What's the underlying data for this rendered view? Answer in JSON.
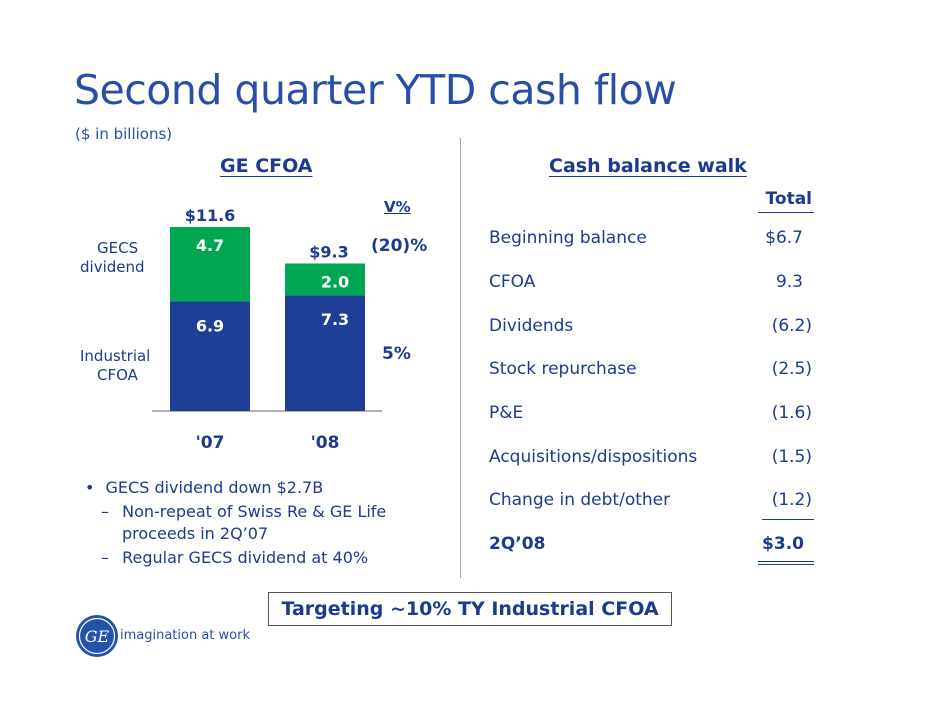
{
  "title": "Second quarter YTD cash flow",
  "subtitle": "($ in billions)",
  "left_section": {
    "heading": "GE CFOA",
    "variance_header": "V%",
    "row_labels": {
      "gecs_line1": "GECS",
      "gecs_line2": "dividend",
      "ind_line1": "Industrial",
      "ind_line2": "CFOA"
    },
    "variance_values": {
      "gecs": "(20)%",
      "industrial": "5%"
    },
    "bullets": [
      {
        "level": 1,
        "marker": "•",
        "text": "GECS dividend down $2.7B"
      },
      {
        "level": 2,
        "marker": "–",
        "text": "Non-repeat of Swiss Re & GE Life"
      },
      {
        "level": 2,
        "marker": "",
        "text": "proceeds in 2Q’07"
      },
      {
        "level": 2,
        "marker": "–",
        "text": "Regular GECS dividend at 40%"
      }
    ]
  },
  "chart_data": {
    "type": "bar",
    "stacked": true,
    "categories": [
      "'07",
      "'08"
    ],
    "totals": [
      "$11.6",
      "$9.3"
    ],
    "series": [
      {
        "name": "Industrial CFOA",
        "values": [
          6.9,
          7.3
        ],
        "color": "#1f3e96"
      },
      {
        "name": "GECS dividend",
        "values": [
          4.7,
          2.0
        ],
        "color": "#00a651"
      }
    ],
    "ylim": [
      0,
      11.6
    ]
  },
  "right_section": {
    "heading": "Cash balance walk",
    "total_header": "Total",
    "rows": [
      {
        "label": "Beginning balance",
        "value": "$6.7",
        "bold": false
      },
      {
        "label": "CFOA",
        "value": "9.3",
        "bold": false
      },
      {
        "label": "Dividends",
        "value": "(6.2)",
        "bold": false
      },
      {
        "label": "Stock repurchase",
        "value": "(2.5)",
        "bold": false
      },
      {
        "label": "P&E",
        "value": "(1.6)",
        "bold": false
      },
      {
        "label": "Acquisitions/dispositions",
        "value": "(1.5)",
        "bold": false
      },
      {
        "label": "Change in debt/other",
        "value": "(1.2)",
        "bold": false
      },
      {
        "label": "2Q’08",
        "value": "$3.0",
        "bold": true
      }
    ]
  },
  "target_text": "Targeting ~10% TY Industrial CFOA",
  "logo": {
    "icon": "ge-monogram-icon",
    "tagline": "imagination at work",
    "monogram": "GE"
  },
  "colors": {
    "title": "#2a4da6",
    "text": "#1d3a8f",
    "industrial": "#1f3e96",
    "gecs": "#00a651"
  }
}
